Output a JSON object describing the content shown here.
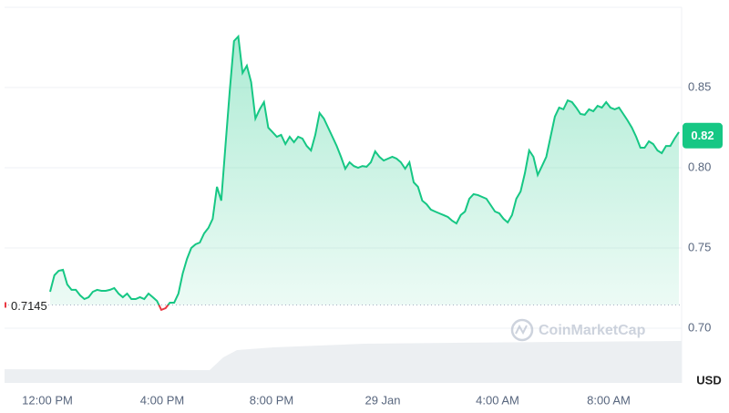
{
  "chart_data": {
    "type": "area-line",
    "currency": "USD",
    "watermark": "CoinMarketCap",
    "baseline": {
      "value": 0.7145,
      "label": "0.7145"
    },
    "current": {
      "value": 0.82,
      "label": "0.82"
    },
    "ylim": [
      0.67,
      0.9
    ],
    "yticks": [
      {
        "value": 0.7,
        "label": "0.70"
      },
      0.75,
      {
        "value": 0.8,
        "label": "0.80"
      },
      0.85
    ],
    "xticks": [
      "12:00 PM",
      "4:00 PM",
      "8:00 PM",
      "29 Jan",
      "4:00 AM",
      "8:00 AM"
    ],
    "grid": true,
    "color": "#16c784",
    "down_color": "#ea3943",
    "values": [
      0.7227,
      0.733,
      0.7358,
      0.7364,
      0.7273,
      0.7239,
      0.7239,
      0.7205,
      0.7182,
      0.7193,
      0.7227,
      0.7239,
      0.7233,
      0.7233,
      0.7239,
      0.725,
      0.7216,
      0.7193,
      0.7216,
      0.7182,
      0.7182,
      0.7193,
      0.7182,
      0.7216,
      0.7193,
      0.717,
      0.7114,
      0.7125,
      0.7159,
      0.7159,
      0.7216,
      0.7341,
      0.7432,
      0.75,
      0.7523,
      0.7534,
      0.7591,
      0.7625,
      0.7682,
      0.7881,
      0.7795,
      0.8136,
      0.8477,
      0.879,
      0.8818,
      0.8591,
      0.8636,
      0.8534,
      0.8307,
      0.8364,
      0.8409,
      0.825,
      0.8222,
      0.8193,
      0.8205,
      0.8148,
      0.8193,
      0.8159,
      0.8193,
      0.8182,
      0.8136,
      0.8108,
      0.8205,
      0.8341,
      0.8307,
      0.825,
      0.8193,
      0.8136,
      0.8068,
      0.7994,
      0.8034,
      0.8011,
      0.8,
      0.8011,
      0.8006,
      0.8034,
      0.8102,
      0.8068,
      0.8045,
      0.8057,
      0.8068,
      0.8057,
      0.8034,
      0.7994,
      0.8034,
      0.7909,
      0.7881,
      0.7795,
      0.7773,
      0.7739,
      0.7727,
      0.7716,
      0.7705,
      0.7693,
      0.767,
      0.7653,
      0.7705,
      0.7727,
      0.7807,
      0.7835,
      0.783,
      0.7818,
      0.7807,
      0.7767,
      0.7727,
      0.7716,
      0.7682,
      0.7659,
      0.7705,
      0.7807,
      0.7852,
      0.7966,
      0.8108,
      0.8068,
      0.7955,
      0.8011,
      0.8068,
      0.8193,
      0.8318,
      0.8375,
      0.8364,
      0.842,
      0.8409,
      0.8375,
      0.8335,
      0.833,
      0.8364,
      0.8352,
      0.8386,
      0.8375,
      0.8409,
      0.8375,
      0.8364,
      0.8375,
      0.8335,
      0.8295,
      0.825,
      0.8193,
      0.8125,
      0.8125,
      0.8165,
      0.8148,
      0.8108,
      0.8091,
      0.8136,
      0.8136,
      0.8182,
      0.8222
    ]
  }
}
